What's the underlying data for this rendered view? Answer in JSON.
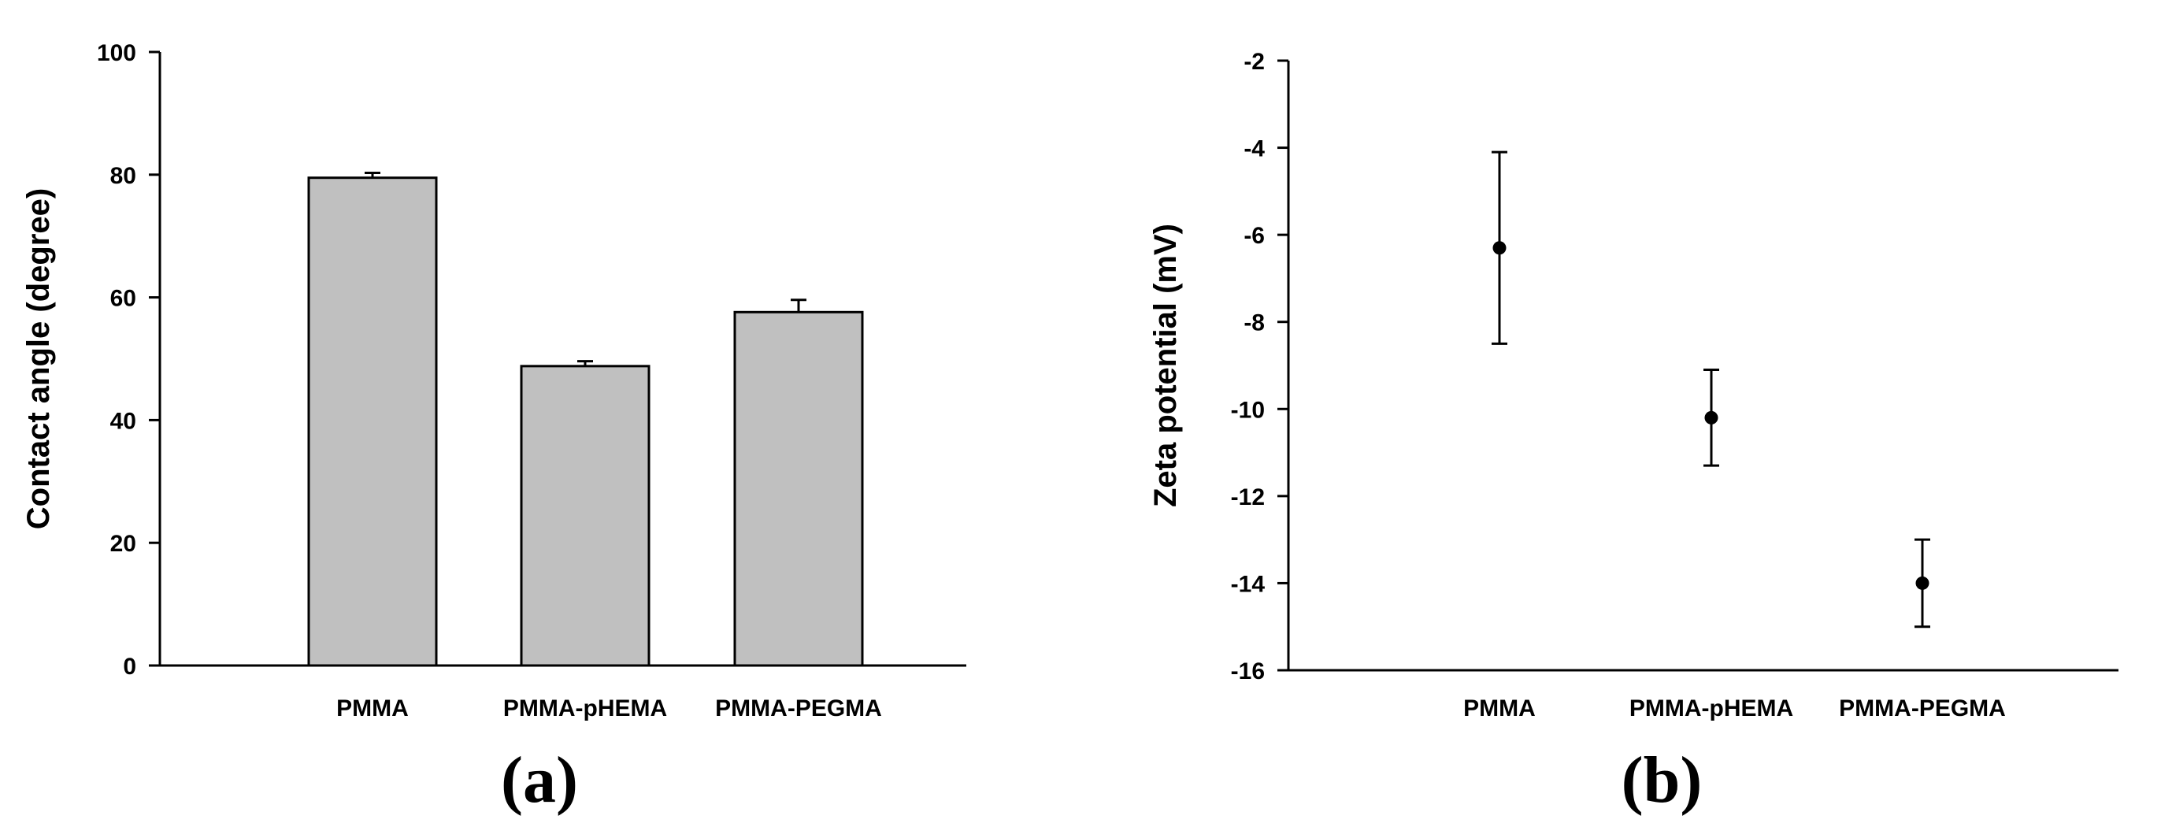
{
  "colors": {
    "bar_fill": "#c0c0c0",
    "stroke": "#000000",
    "background": "#ffffff"
  },
  "chart_data": [
    {
      "type": "bar",
      "panel_label": "(a)",
      "categories": [
        "PMMA",
        "PMMA-pHEMA",
        "PMMA-PEGMA"
      ],
      "values": [
        79.5,
        48.8,
        57.6
      ],
      "errors": [
        0.8,
        0.8,
        2.0
      ],
      "ylabel": "Contact angle (degree)",
      "xlabel": "",
      "ylim": [
        0,
        100
      ],
      "yticks": [
        0,
        20,
        40,
        60,
        80,
        100
      ],
      "grid": false,
      "legend": "none"
    },
    {
      "type": "scatter",
      "panel_label": "(b)",
      "categories": [
        "PMMA",
        "PMMA-pHEMA",
        "PMMA-PEGMA"
      ],
      "values": [
        -6.3,
        -10.2,
        -14.0
      ],
      "errors": [
        2.2,
        1.1,
        1.0
      ],
      "ylabel": "Zeta potential (mV)",
      "xlabel": "",
      "ylim": [
        -16,
        -2
      ],
      "yticks": [
        -16,
        -14,
        -12,
        -10,
        -8,
        -6,
        -4,
        -2
      ],
      "grid": false,
      "legend": "none"
    }
  ]
}
